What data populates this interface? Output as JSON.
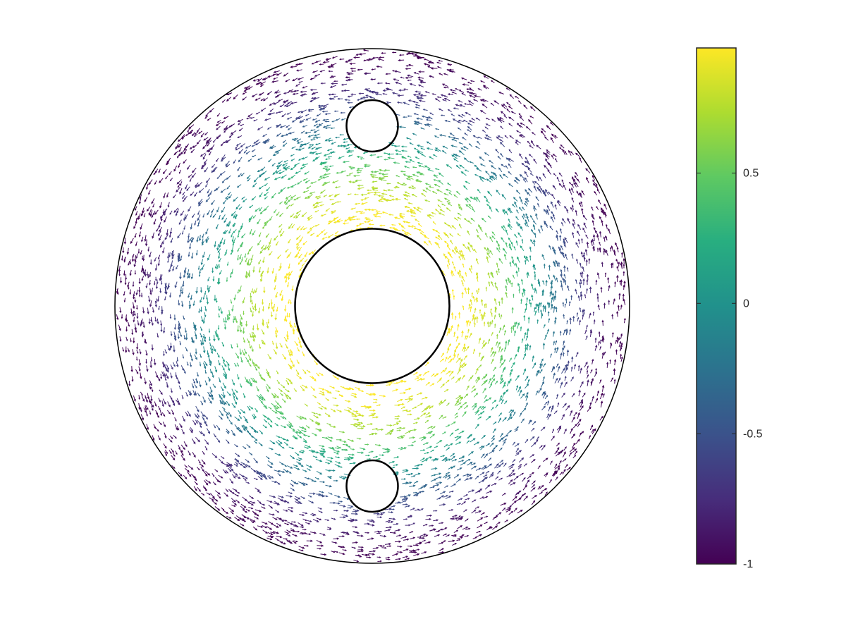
{
  "chart_data": {
    "type": "quiver",
    "domain": {
      "outer_radius": 1,
      "inner_radius": 0.3,
      "holes": [
        {
          "x": 0,
          "y": 0.7,
          "r": 0.1
        },
        {
          "x": 0,
          "y": -0.7,
          "r": 0.1
        }
      ]
    },
    "xlim": [
      -1,
      1
    ],
    "ylim": [
      -1,
      1
    ],
    "clim": [
      -1,
      0.98
    ],
    "colorbar_ticks": [
      0.5,
      0,
      -0.5,
      -1
    ],
    "colormap": [
      "#440154",
      "#472d7b",
      "#3b528b",
      "#2c728e",
      "#21918c",
      "#28ae80",
      "#5ec962",
      "#addc30",
      "#fde725"
    ]
  }
}
